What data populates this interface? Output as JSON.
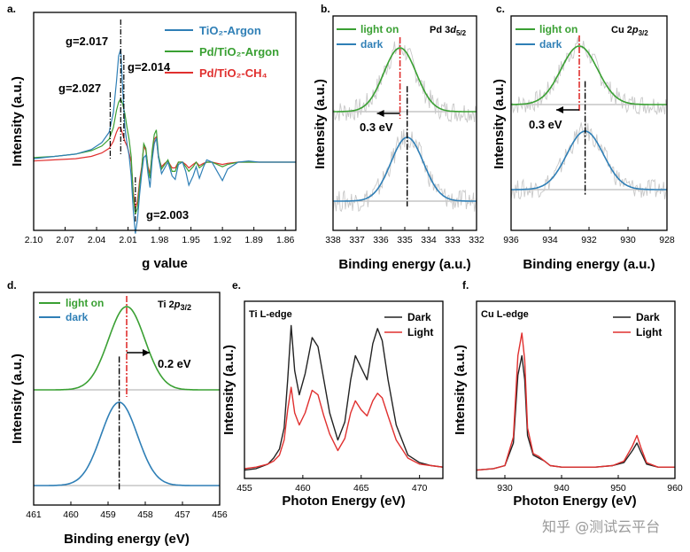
{
  "watermark": "知乎 @测试云平台",
  "colors": {
    "argon": "#2f7fb6",
    "pdArgon": "#3aa033",
    "pdCH4": "#e0302f",
    "lighton": "#3aa033",
    "dark": "#2f7fb6",
    "ref": "#aaaaaa",
    "raw": "#c8c8c8",
    "xDark": "#222222",
    "xLight": "#e0302f"
  },
  "chart_data": [
    {
      "panel": "a.",
      "type": "line",
      "xlabel": "g value",
      "ylabel": "Intensity (a.u.)",
      "xlim": [
        2.1,
        1.85
      ],
      "x_reversed": true,
      "xticks": [
        "2.10",
        "2.07",
        "2.04",
        "2.01",
        "1.98",
        "1.95",
        "1.92",
        "1.89",
        "1.86"
      ],
      "legend": {
        "position": "top-right",
        "entries": [
          "TiO₂-Argon",
          "Pd/TiO₂-Argon",
          "Pd/TiO₂-CH₄"
        ]
      },
      "annotations": [
        "g=2.017",
        "g=2.014",
        "g=2.027",
        "g=2.003"
      ],
      "markers": [
        2.027,
        2.017,
        2.014,
        2.003
      ],
      "series": [
        {
          "name": "TiO₂-Argon",
          "color_key": "argon",
          "x": [
            2.1,
            2.08,
            2.06,
            2.045,
            2.035,
            2.028,
            2.024,
            2.021,
            2.019,
            2.017,
            2.015,
            2.013,
            2.011,
            2.009,
            2.007,
            2.005,
            2.003,
            2.001,
            1.999,
            1.997,
            1.995,
            1.993,
            1.991,
            1.989,
            1.987,
            1.985,
            1.983,
            1.981,
            1.978,
            1.975,
            1.972,
            1.968,
            1.965,
            1.962,
            1.958,
            1.955,
            1.952,
            1.948,
            1.945,
            1.942,
            1.938,
            1.935,
            1.93,
            1.925,
            1.92,
            1.915,
            1.905,
            1.895,
            1.885,
            1.875,
            1.865,
            1.85
          ],
          "y": [
            0.03,
            0.05,
            0.07,
            0.11,
            0.17,
            0.26,
            0.43,
            0.7,
            0.92,
            0.98,
            0.62,
            0.3,
            0.16,
            0.06,
            -0.12,
            -0.42,
            -0.62,
            -0.5,
            -0.28,
            -0.1,
            0.04,
            0.06,
            -0.1,
            -0.22,
            0.02,
            0.16,
            0.21,
            0.04,
            -0.1,
            -0.05,
            0.0,
            -0.12,
            -0.15,
            -0.02,
            0.0,
            -0.08,
            -0.2,
            -0.12,
            -0.04,
            -0.14,
            -0.04,
            0.02,
            0.0,
            -0.08,
            -0.16,
            -0.06,
            0.0,
            0.01,
            0.0,
            0.0,
            0.0,
            0.0
          ]
        },
        {
          "name": "Pd/TiO₂-Argon",
          "color_key": "pdArgon",
          "x": [
            2.1,
            2.08,
            2.06,
            2.045,
            2.035,
            2.028,
            2.024,
            2.021,
            2.019,
            2.017,
            2.015,
            2.013,
            2.011,
            2.009,
            2.007,
            2.005,
            2.003,
            2.001,
            1.999,
            1.997,
            1.995,
            1.993,
            1.991,
            1.989,
            1.987,
            1.985,
            1.983,
            1.981,
            1.978,
            1.975,
            1.972,
            1.968,
            1.965,
            1.962,
            1.958,
            1.955,
            1.952,
            1.948,
            1.945,
            1.942,
            1.938,
            1.935,
            1.93,
            1.925,
            1.92,
            1.915,
            1.905,
            1.895,
            1.885,
            1.875,
            1.865,
            1.85
          ],
          "y": [
            0.04,
            0.05,
            0.07,
            0.1,
            0.14,
            0.2,
            0.3,
            0.45,
            0.52,
            0.55,
            0.5,
            0.42,
            0.3,
            0.2,
            0.05,
            -0.3,
            -0.45,
            -0.4,
            -0.2,
            -0.06,
            0.16,
            0.12,
            -0.06,
            -0.14,
            0.1,
            0.24,
            0.28,
            0.06,
            -0.06,
            -0.02,
            0.02,
            -0.08,
            -0.08,
            0.0,
            0.0,
            -0.04,
            -0.08,
            -0.04,
            0.0,
            -0.05,
            -0.02,
            0.0,
            0.0,
            -0.02,
            -0.04,
            -0.02,
            0.0,
            0.0,
            0.0,
            0.0,
            0.0,
            0.0
          ]
        },
        {
          "name": "Pd/TiO₂-CH₄",
          "color_key": "pdCH4",
          "x": [
            2.1,
            2.08,
            2.06,
            2.045,
            2.035,
            2.028,
            2.024,
            2.021,
            2.019,
            2.017,
            2.015,
            2.013,
            2.011,
            2.009,
            2.007,
            2.005,
            2.003,
            2.001,
            1.999,
            1.997,
            1.995,
            1.993,
            1.991,
            1.989,
            1.987,
            1.985,
            1.983,
            1.981,
            1.978,
            1.975,
            1.972,
            1.968,
            1.965,
            1.962,
            1.958,
            1.955,
            1.952,
            1.948,
            1.945,
            1.942,
            1.938,
            1.935,
            1.93,
            1.925,
            1.92,
            1.915,
            1.905,
            1.895,
            1.885,
            1.875,
            1.865,
            1.85
          ],
          "y": [
            0.01,
            0.02,
            0.03,
            0.05,
            0.08,
            0.12,
            0.18,
            0.26,
            0.3,
            0.3,
            0.24,
            0.18,
            0.14,
            0.08,
            0.0,
            -0.26,
            -0.4,
            -0.34,
            -0.16,
            -0.04,
            0.14,
            0.1,
            -0.04,
            -0.1,
            0.08,
            0.2,
            0.22,
            0.04,
            -0.04,
            -0.01,
            0.01,
            -0.05,
            -0.05,
            0.0,
            0.0,
            -0.02,
            -0.05,
            -0.02,
            0.0,
            -0.03,
            -0.01,
            0.0,
            0.0,
            -0.01,
            -0.02,
            -0.01,
            0.0,
            0.0,
            0.0,
            0.0,
            0.0,
            0.0
          ]
        }
      ]
    },
    {
      "panel": "b.",
      "type": "line",
      "title": "Pd 3d5/2",
      "xlabel": "Binding energy (a.u.)",
      "ylabel": "Intensity (a.u.)",
      "xlim": [
        338,
        332
      ],
      "x_reversed": true,
      "xticks": [
        "338",
        "337",
        "336",
        "335",
        "334",
        "333",
        "332"
      ],
      "legend": {
        "position": "top-left",
        "entries": [
          "light on",
          "dark"
        ]
      },
      "annotation": "0.3 eV",
      "peaks": {
        "light on": 335.2,
        "dark": 334.9
      },
      "series": [
        {
          "name": "light on",
          "color_key": "lighton",
          "center": 335.2,
          "fwhm": 1.6
        },
        {
          "name": "dark",
          "color_key": "dark",
          "center": 334.9,
          "fwhm": 1.6
        }
      ]
    },
    {
      "panel": "c.",
      "type": "line",
      "title": "Cu 2p3/2",
      "xlabel": "Binding energy (a.u.)",
      "ylabel": "Intensity (a.u.)",
      "xlim": [
        936,
        928
      ],
      "x_reversed": true,
      "xticks": [
        "936",
        "934",
        "932",
        "930",
        "928"
      ],
      "legend": {
        "position": "top-left",
        "entries": [
          "light on",
          "dark"
        ]
      },
      "annotation": "0.3 eV",
      "peaks": {
        "light on": 932.5,
        "dark": 932.2
      },
      "series": [
        {
          "name": "light on",
          "color_key": "lighton",
          "center": 932.5,
          "fwhm": 2.2
        },
        {
          "name": "dark",
          "color_key": "dark",
          "center": 932.2,
          "fwhm": 2.2
        }
      ]
    },
    {
      "panel": "d.",
      "type": "line",
      "title": "Ti 2p3/2",
      "xlabel": "Binding energy (eV)",
      "ylabel": "Intensity (a.u.)",
      "xlim": [
        461,
        456
      ],
      "x_reversed": true,
      "xticks": [
        "461",
        "460",
        "459",
        "458",
        "457",
        "456"
      ],
      "legend": {
        "position": "top-left",
        "entries": [
          "light on",
          "dark"
        ]
      },
      "annotation": "0.2 eV",
      "peaks": {
        "light on": 458.5,
        "dark": 458.7
      },
      "series": [
        {
          "name": "light on",
          "color_key": "lighton",
          "center": 458.5,
          "fwhm": 1.15
        },
        {
          "name": "dark",
          "color_key": "dark",
          "center": 458.7,
          "fwhm": 1.15
        }
      ]
    },
    {
      "panel": "e.",
      "type": "line",
      "label": "Ti L-edge",
      "xlabel": "Photon Energy (eV)",
      "ylabel": "Intensity (a.u.)",
      "xlim": [
        455,
        472
      ],
      "xticks": [
        "455",
        "460",
        "465",
        "470"
      ],
      "legend": {
        "position": "top-right",
        "entries": [
          "Dark",
          "Light"
        ]
      },
      "series": [
        {
          "name": "Dark",
          "color_key": "xDark",
          "x": [
            455,
            456,
            457,
            457.5,
            458,
            458.4,
            458.7,
            459,
            459.3,
            459.7,
            460.2,
            460.8,
            461.3,
            461.8,
            462.3,
            463,
            463.6,
            464.1,
            464.5,
            465,
            465.5,
            466,
            466.4,
            466.8,
            467.3,
            468,
            469,
            470,
            471,
            472
          ],
          "y": [
            0.02,
            0.03,
            0.06,
            0.1,
            0.16,
            0.3,
            0.62,
            0.98,
            0.68,
            0.52,
            0.66,
            0.9,
            0.84,
            0.62,
            0.4,
            0.22,
            0.34,
            0.62,
            0.78,
            0.7,
            0.62,
            0.86,
            0.96,
            0.88,
            0.62,
            0.32,
            0.12,
            0.07,
            0.05,
            0.04
          ]
        },
        {
          "name": "Light",
          "color_key": "xLight",
          "x": [
            455,
            456,
            457,
            457.5,
            458,
            458.4,
            458.7,
            459,
            459.3,
            459.7,
            460.2,
            460.8,
            461.3,
            461.8,
            462.3,
            463,
            463.6,
            464.1,
            464.5,
            465,
            465.5,
            466,
            466.4,
            466.8,
            467.3,
            468,
            469,
            470,
            471,
            472
          ],
          "y": [
            0.03,
            0.04,
            0.06,
            0.08,
            0.12,
            0.22,
            0.42,
            0.57,
            0.4,
            0.32,
            0.4,
            0.55,
            0.52,
            0.38,
            0.26,
            0.15,
            0.23,
            0.4,
            0.48,
            0.42,
            0.38,
            0.48,
            0.53,
            0.5,
            0.38,
            0.22,
            0.1,
            0.06,
            0.05,
            0.04
          ]
        }
      ]
    },
    {
      "panel": "f.",
      "type": "line",
      "label": "Cu L-edge",
      "xlabel": "Photon Energy (eV)",
      "ylabel": "Intensity (a.u.)",
      "xlim": [
        925,
        960
      ],
      "xticks": [
        "930",
        "940",
        "950",
        "960"
      ],
      "legend": {
        "position": "top-right",
        "entries": [
          "Dark",
          "Light"
        ]
      },
      "series": [
        {
          "name": "Dark",
          "color_key": "xDark",
          "x": [
            925,
            928,
            930,
            931.5,
            932.3,
            933,
            933.5,
            934,
            935,
            936,
            937,
            938,
            940,
            943,
            946,
            949,
            951,
            952.5,
            953.3,
            954,
            955,
            957,
            960
          ],
          "y": [
            0.02,
            0.03,
            0.05,
            0.2,
            0.65,
            0.78,
            0.62,
            0.25,
            0.12,
            0.1,
            0.08,
            0.05,
            0.04,
            0.04,
            0.04,
            0.05,
            0.07,
            0.15,
            0.2,
            0.14,
            0.06,
            0.04,
            0.04
          ]
        },
        {
          "name": "Light",
          "color_key": "xLight",
          "x": [
            925,
            928,
            930,
            931.5,
            932.3,
            933,
            933.5,
            934,
            935,
            936,
            937,
            938,
            940,
            943,
            946,
            949,
            951,
            952.5,
            953.3,
            954,
            955,
            957,
            960
          ],
          "y": [
            0.02,
            0.03,
            0.05,
            0.24,
            0.78,
            0.93,
            0.75,
            0.3,
            0.13,
            0.11,
            0.08,
            0.05,
            0.04,
            0.04,
            0.04,
            0.05,
            0.08,
            0.18,
            0.25,
            0.17,
            0.07,
            0.04,
            0.04
          ]
        }
      ]
    }
  ]
}
